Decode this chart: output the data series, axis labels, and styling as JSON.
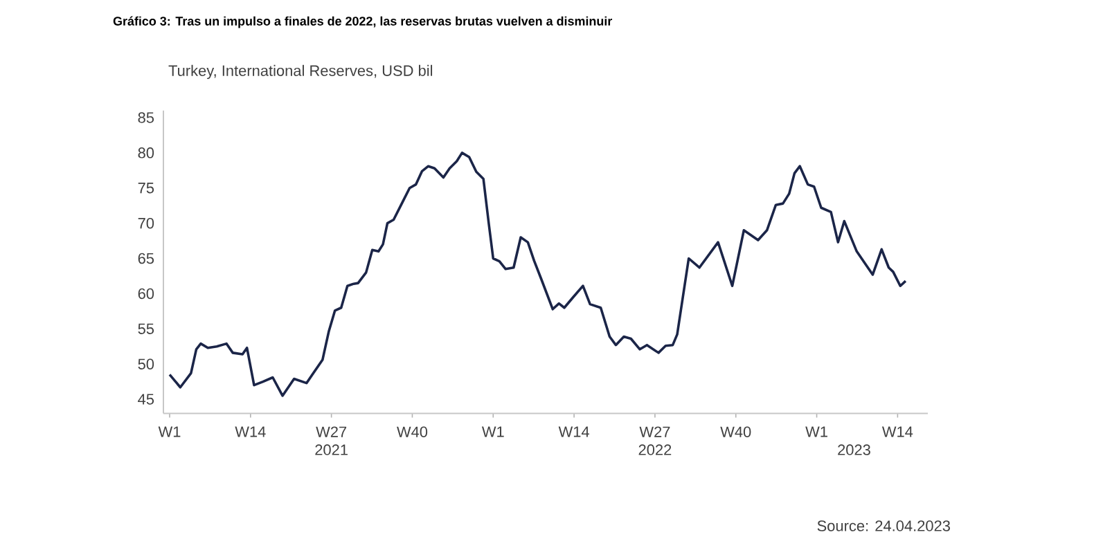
{
  "chart_data": {
    "type": "line",
    "title": "Gráfico 3: Tras un impulso a finales de 2022, las reservas brutas vuelven a disminuir",
    "subtitle": "Turkey, International Reserves, USD bil",
    "annotations": [
      "Source: 24.04.2023"
    ],
    "x": [
      "2021-01-04",
      "2021-01-16",
      "2021-01-28",
      "2021-02-03",
      "2021-02-08",
      "2021-02-16",
      "2021-02-26",
      "2021-03-09",
      "2021-03-16",
      "2021-03-27",
      "2021-04-01",
      "2021-04-09",
      "2021-04-19",
      "2021-04-30",
      "2021-05-11",
      "2021-05-24",
      "2021-06-07",
      "2021-06-14",
      "2021-06-25",
      "2021-07-02",
      "2021-07-09",
      "2021-07-16",
      "2021-07-23",
      "2021-07-30",
      "2021-08-04",
      "2021-08-13",
      "2021-08-20",
      "2021-08-27",
      "2021-09-01",
      "2021-09-06",
      "2021-09-13",
      "2021-09-23",
      "2021-10-01",
      "2021-10-08",
      "2021-10-15",
      "2021-10-22",
      "2021-10-29",
      "2021-11-08",
      "2021-11-15",
      "2021-11-23",
      "2021-11-29",
      "2021-12-07",
      "2021-12-15",
      "2021-12-23",
      "2021-12-29",
      "2022-01-03",
      "2022-01-10",
      "2022-01-17",
      "2022-01-26",
      "2022-02-03",
      "2022-02-11",
      "2022-02-18",
      "2022-02-26",
      "2022-03-11",
      "2022-03-18",
      "2022-03-24",
      "2022-04-03",
      "2022-04-14",
      "2022-04-22",
      "2022-05-04",
      "2022-05-14",
      "2022-05-21",
      "2022-05-30",
      "2022-06-07",
      "2022-06-17",
      "2022-06-25",
      "2022-07-08",
      "2022-07-16",
      "2022-07-24",
      "2022-07-29",
      "2022-08-11",
      "2022-08-23",
      "2022-09-13",
      "2022-09-29",
      "2022-10-12",
      "2022-10-28",
      "2022-11-07",
      "2022-11-17",
      "2022-11-25",
      "2022-12-02",
      "2022-12-08",
      "2022-12-14",
      "2022-12-23",
      "2022-12-30",
      "2023-01-07",
      "2023-01-18",
      "2023-01-26",
      "2023-02-02",
      "2023-02-16",
      "2023-03-06",
      "2023-03-16",
      "2023-03-24",
      "2023-03-29",
      "2023-04-06",
      "2023-04-12"
    ],
    "values": [
      48.5,
      46.7,
      48.7,
      52.1,
      52.9,
      52.3,
      52.5,
      52.9,
      51.6,
      51.4,
      52.3,
      47,
      47.5,
      48.1,
      45.5,
      47.9,
      47.3,
      48.6,
      50.6,
      54.6,
      57.6,
      58,
      61.1,
      61.4,
      61.5,
      63,
      66.2,
      66,
      67,
      70,
      70.5,
      73,
      75,
      75.5,
      77.4,
      78.1,
      77.8,
      76.5,
      77.8,
      78.8,
      80,
      79.4,
      77.3,
      76.3,
      70,
      65,
      64.6,
      63.5,
      63.7,
      68,
      67.3,
      64.7,
      62.1,
      57.8,
      58.6,
      58,
      59.5,
      61.1,
      58.5,
      58,
      53.9,
      52.7,
      53.9,
      53.6,
      52.1,
      52.7,
      51.6,
      52.6,
      52.7,
      54.2,
      65,
      63.7,
      67.3,
      61.1,
      69,
      67.6,
      69,
      72.6,
      72.8,
      74.2,
      77.1,
      78.1,
      75.5,
      75.2,
      72.2,
      71.6,
      67.3,
      70.3,
      66,
      62.7,
      66.3,
      63.7,
      63.1,
      61.1,
      61.8
    ],
    "color": "#1b2548",
    "xlim": [
      "2020-12-28",
      "2023-05-07"
    ],
    "xticks": [
      {
        "value": "2021-01-04",
        "label": "W1"
      },
      {
        "value": "2021-04-05",
        "label": "W14"
      },
      {
        "value": "2021-07-05",
        "label": "W27"
      },
      {
        "value": "2021-10-04",
        "label": "W40"
      },
      {
        "value": "2022-01-03",
        "label": "W1"
      },
      {
        "value": "2022-04-04",
        "label": "W14"
      },
      {
        "value": "2022-07-04",
        "label": "W27"
      },
      {
        "value": "2022-10-03",
        "label": "W40"
      },
      {
        "value": "2023-01-02",
        "label": "W1"
      },
      {
        "value": "2023-04-03",
        "label": "W14"
      }
    ],
    "x2lim": [
      "2020-12-28",
      "2023-05-07"
    ],
    "x2ticks": [
      {
        "value": "2021-07-05",
        "label": "2021"
      },
      {
        "value": "2022-07-04",
        "label": "2022"
      },
      {
        "value": "2023-02-13",
        "label": "2023"
      }
    ],
    "ylim": [
      43,
      86
    ],
    "yticks": [
      45,
      50,
      55,
      60,
      65,
      70,
      75,
      80,
      85
    ]
  }
}
